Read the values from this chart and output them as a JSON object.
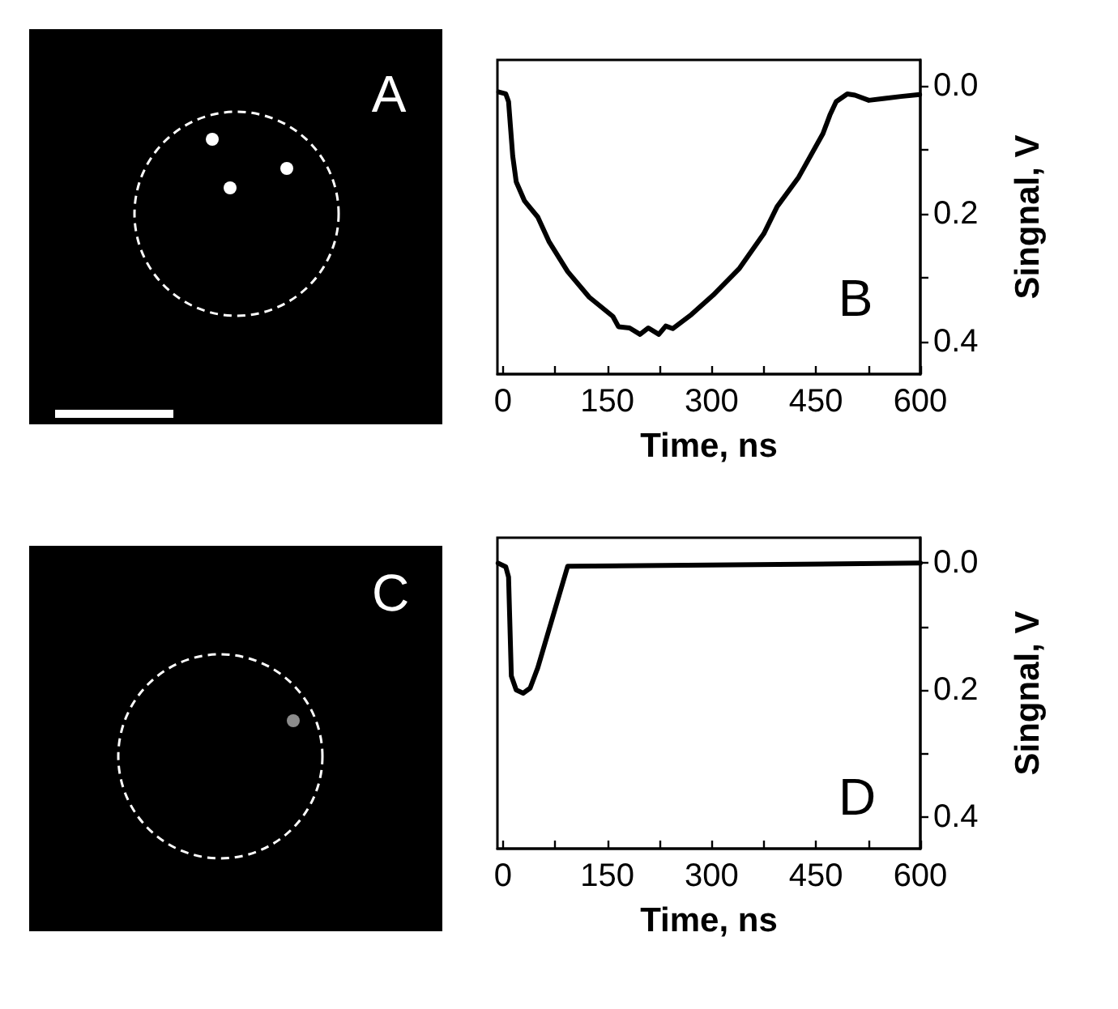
{
  "chart_data": [
    {
      "type": "other",
      "annotations": [
        "A"
      ]
    },
    {
      "type": "line",
      "x": [
        -6,
        4,
        8,
        14,
        19,
        31,
        50,
        66,
        93,
        124,
        158,
        166,
        182,
        197,
        209,
        224,
        234,
        244,
        271,
        302,
        340,
        375,
        394,
        425,
        460,
        470,
        479,
        495,
        506,
        526,
        549,
        572,
        599
      ],
      "values": [
        0.01,
        0.013,
        0.025,
        0.11,
        0.15,
        0.18,
        0.205,
        0.243,
        0.29,
        0.33,
        0.36,
        0.376,
        0.378,
        0.388,
        0.378,
        0.388,
        0.375,
        0.379,
        0.357,
        0.327,
        0.285,
        0.231,
        0.189,
        0.143,
        0.075,
        0.046,
        0.025,
        0.013,
        0.015,
        0.023,
        0.02,
        0.017,
        0.014
      ],
      "color": "#000000",
      "marker": "none",
      "xlabel": "Time, ns",
      "ylabel": "Singnal, V",
      "xlim": [
        -8,
        600
      ],
      "ylim": [
        0.45,
        -0.04
      ],
      "xticks": [
        0,
        {
          "value": 75,
          "label": null
        },
        150,
        {
          "value": 225,
          "label": null
        },
        300,
        {
          "value": 375,
          "label": null
        },
        450,
        {
          "value": 525,
          "label": null
        },
        600
      ],
      "yticks": [
        {
          "value": 0,
          "label": "0.0"
        },
        {
          "value": 0.1,
          "label": null
        },
        {
          "value": 0.2,
          "label": "0.2"
        },
        {
          "value": 0.3,
          "label": null
        },
        {
          "value": 0.4,
          "label": "0.4"
        }
      ],
      "annotations": [
        "B"
      ]
    },
    {
      "type": "other",
      "annotations": [
        "C"
      ]
    },
    {
      "type": "line",
      "x": [
        -7,
        4,
        8,
        12,
        19,
        29,
        39,
        50,
        93,
        600
      ],
      "values": [
        0.0,
        0.006,
        0.022,
        0.178,
        0.2,
        0.205,
        0.197,
        0.165,
        0.005,
        0.0
      ],
      "color": "#000000",
      "marker": "none",
      "xlabel": "Time, ns",
      "ylabel": "Singnal, V",
      "xlim": [
        -8,
        600
      ],
      "ylim": [
        0.45,
        -0.04
      ],
      "xticks": [
        0,
        {
          "value": 75,
          "label": null
        },
        150,
        {
          "value": 225,
          "label": null
        },
        300,
        {
          "value": 375,
          "label": null
        },
        450,
        {
          "value": 525,
          "label": null
        },
        600
      ],
      "yticks": [
        {
          "value": 0,
          "label": "0.0"
        },
        {
          "value": 0.1,
          "label": null
        },
        {
          "value": 0.2,
          "label": "0.2"
        },
        {
          "value": 0.3,
          "label": null
        },
        {
          "value": 0.4,
          "label": "0.4"
        }
      ],
      "annotations": [
        "D"
      ]
    }
  ]
}
